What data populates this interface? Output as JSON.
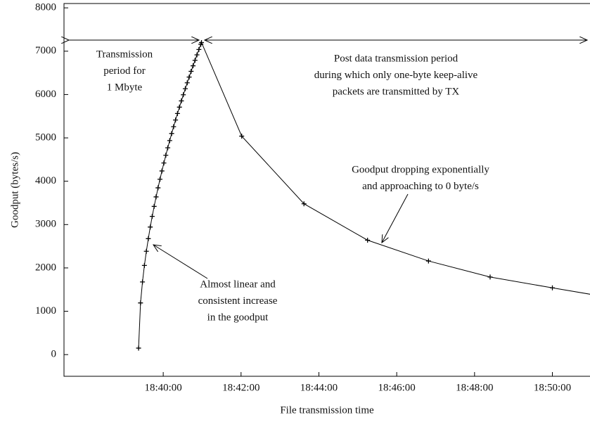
{
  "chart_data": {
    "type": "line",
    "x_label": "File transmission time",
    "y_label": "Goodput (bytes/s)",
    "x": [
      "18:39:22",
      "18:39:25",
      "18:39:28",
      "18:39:31",
      "18:39:34",
      "18:39:37",
      "18:39:40",
      "18:39:43",
      "18:39:46",
      "18:39:49",
      "18:39:52",
      "18:39:55",
      "18:39:58",
      "18:40:01",
      "18:40:04",
      "18:40:07",
      "18:40:10",
      "18:40:13",
      "18:40:16",
      "18:40:19",
      "18:40:22",
      "18:40:25",
      "18:40:28",
      "18:40:31",
      "18:40:34",
      "18:40:37",
      "18:40:40",
      "18:40:43",
      "18:40:46",
      "18:40:49",
      "18:40:52",
      "18:40:55",
      "18:40:58",
      "18:40:59",
      "18:42:01",
      "18:43:37",
      "18:45:15",
      "18:46:49",
      "18:48:24",
      "18:50:00",
      "18:51:35"
    ],
    "series": [
      {
        "color": "#000000",
        "values": [
          150,
          1193,
          1676,
          2058,
          2384,
          2675,
          2943,
          3189,
          3420,
          3639,
          3848,
          4046,
          4237,
          4421,
          4599,
          4771,
          4938,
          5101,
          5258,
          5413,
          5563,
          5710,
          5854,
          5995,
          6134,
          6270,
          6403,
          6535,
          6663,
          6790,
          6915,
          7039,
          7160,
          7200,
          5040,
          3480,
          2640,
          2160,
          1790,
          1540,
          1300
        ]
      }
    ],
    "xlim": [
      "18:37:27",
      "18:50:58"
    ],
    "xticks": [
      "18:40:00",
      "18:42:00",
      "18:44:00",
      "18:46:00",
      "18:48:00",
      "18:50:00"
    ],
    "ylim": [
      -500,
      8100
    ],
    "yticks": [
      0,
      1000,
      2000,
      3000,
      4000,
      5000,
      6000,
      7000,
      8000
    ],
    "annotations": [
      [
        "Transmission",
        "period for",
        "1 Mbyte"
      ],
      [
        "Post data transmission period",
        "during which only one-byte keep-alive",
        "packets are transmitted by TX"
      ],
      [
        "Goodput dropping exponentially",
        "and approaching to 0 byte/s"
      ],
      [
        "Almost linear and",
        "consistent increase",
        "in the goodput"
      ]
    ]
  }
}
